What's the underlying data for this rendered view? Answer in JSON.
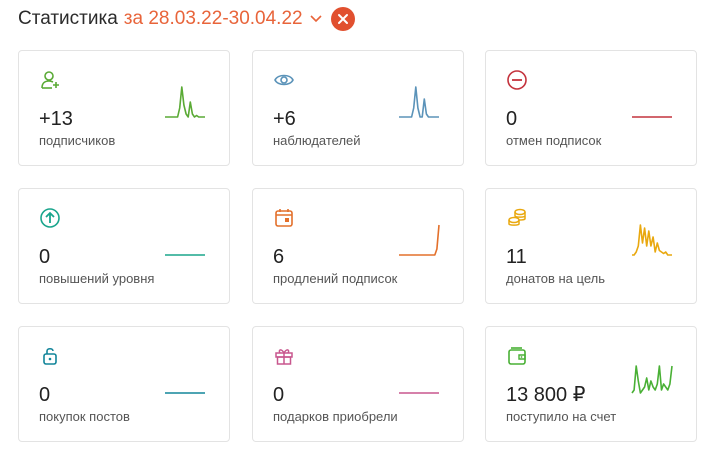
{
  "header": {
    "title": "Статистика",
    "range": "за 28.03.22-30.04.22"
  },
  "cards": [
    {
      "value": "+13",
      "label": "подписчиков",
      "icon": "user-plus-icon",
      "color": "#5aaa35",
      "trend": [
        0,
        0,
        0,
        0,
        0,
        0,
        0,
        0.3,
        1,
        0.4,
        0.1,
        0,
        0.5,
        0.1,
        0,
        0.05,
        0,
        0,
        0,
        0
      ]
    },
    {
      "value": "+6",
      "label": "наблюдателей",
      "icon": "eye-icon",
      "color": "#5b93b9",
      "trend": [
        0,
        0,
        0,
        0,
        0,
        0,
        0,
        0.3,
        1,
        0.3,
        0,
        0,
        0.6,
        0.1,
        0,
        0,
        0,
        0,
        0,
        0
      ]
    },
    {
      "value": "0",
      "label": "отмен подписок",
      "icon": "minus-circle-icon",
      "color": "#c4333d",
      "trend": [
        0,
        0,
        0,
        0,
        0,
        0,
        0,
        0,
        0,
        0,
        0,
        0,
        0,
        0,
        0,
        0,
        0,
        0,
        0,
        0
      ]
    },
    {
      "value": "0",
      "label": "повышений уровня",
      "icon": "arrow-up-circle-icon",
      "color": "#1aa58c",
      "trend": [
        0,
        0,
        0,
        0,
        0,
        0,
        0,
        0,
        0,
        0,
        0,
        0,
        0,
        0,
        0,
        0,
        0,
        0,
        0,
        0
      ]
    },
    {
      "value": "6",
      "label": "продлений подписок",
      "icon": "calendar-icon",
      "color": "#e3702b",
      "trend": [
        0,
        0,
        0,
        0,
        0,
        0,
        0,
        0,
        0,
        0,
        0,
        0,
        0,
        0,
        0,
        0,
        0,
        0,
        0.2,
        1
      ]
    },
    {
      "value": "11",
      "label": "донатов на цель",
      "icon": "coins-icon",
      "color": "#e9a80f",
      "trend": [
        0,
        0,
        0.1,
        0.3,
        1,
        0.4,
        0.9,
        0.3,
        0.8,
        0.3,
        0.6,
        0.1,
        0.4,
        0.15,
        0.1,
        0.05,
        0.1,
        0,
        0,
        0
      ]
    },
    {
      "value": "0",
      "label": "покупок постов",
      "icon": "lock-icon",
      "color": "#12859a",
      "trend": [
        0,
        0,
        0,
        0,
        0,
        0,
        0,
        0,
        0,
        0,
        0,
        0,
        0,
        0,
        0,
        0,
        0,
        0,
        0,
        0
      ]
    },
    {
      "value": "0",
      "label": "подарков приобрели",
      "icon": "gift-icon",
      "color": "#c8578e",
      "trend": [
        0,
        0,
        0,
        0,
        0,
        0,
        0,
        0,
        0,
        0,
        0,
        0,
        0,
        0,
        0,
        0,
        0,
        0,
        0,
        0
      ]
    },
    {
      "value": "13 800 ₽",
      "label": "поступило на счет",
      "icon": "wallet-icon",
      "color": "#49b035",
      "trend": [
        0,
        0.1,
        0.9,
        0.4,
        0,
        0.1,
        0.2,
        0.5,
        0.1,
        0.4,
        0.2,
        0.1,
        0.3,
        0.9,
        0.1,
        0.3,
        0.2,
        0.1,
        0.3,
        0.9
      ]
    }
  ]
}
